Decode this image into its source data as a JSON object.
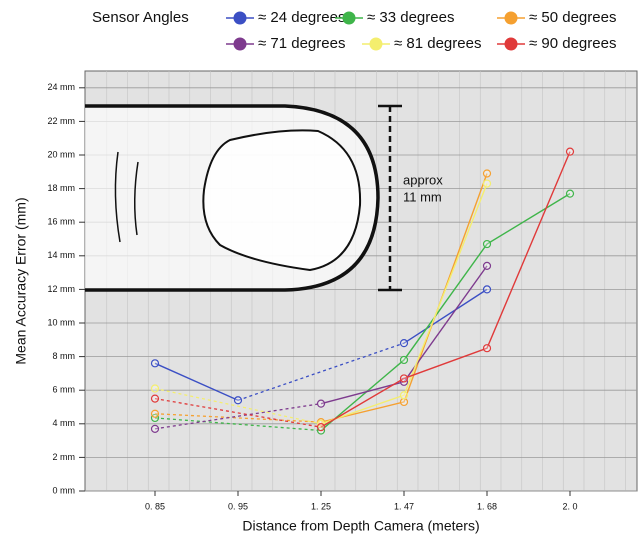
{
  "chart_data": {
    "type": "line",
    "legend_title": "Sensor Angles",
    "xlabel": "Distance from Depth Camera (meters)",
    "ylabel": "Mean Accuracy Error (mm)",
    "annotation": [
      "approx",
      "11 mm"
    ],
    "categories": [
      "0. 85",
      "0. 95",
      "1. 25",
      "1. 47",
      "1. 68",
      "2. 0"
    ],
    "series": [
      {
        "name": "≈ 24 degrees",
        "color": "#3b4fc4",
        "values": [
          7.6,
          5.4,
          null,
          8.8,
          12.0,
          null
        ]
      },
      {
        "name": "≈ 33 degrees",
        "color": "#3fb54a",
        "values": [
          4.35,
          null,
          3.6,
          7.8,
          14.7,
          17.7
        ]
      },
      {
        "name": "≈ 50 degrees",
        "color": "#f5a030",
        "values": [
          4.6,
          null,
          4.1,
          5.3,
          18.9,
          null
        ]
      },
      {
        "name": "≈ 71 degrees",
        "color": "#7e3b8e",
        "values": [
          3.7,
          null,
          5.2,
          6.5,
          13.4,
          null
        ]
      },
      {
        "name": "≈ 81 degrees",
        "color": "#f4ee6e",
        "values": [
          6.1,
          null,
          4.0,
          5.7,
          18.3,
          null
        ]
      },
      {
        "name": "≈ 90 degrees",
        "color": "#e03a3a",
        "values": [
          5.5,
          null,
          3.8,
          6.7,
          8.5,
          20.2
        ]
      }
    ],
    "ylim": [
      0,
      25
    ],
    "yticks": [
      {
        "value": 0,
        "label": "0 mm"
      },
      {
        "value": 2,
        "label": "2 mm"
      },
      {
        "value": 4,
        "label": "4 mm"
      },
      {
        "value": 6,
        "label": "6 mm"
      },
      {
        "value": 8,
        "label": "8 mm"
      },
      {
        "value": 10,
        "label": "10 mm"
      },
      {
        "value": 12,
        "label": "12 mm"
      },
      {
        "value": 14,
        "label": "14 mm"
      },
      {
        "value": 16,
        "label": "16 mm"
      },
      {
        "value": 18,
        "label": "18 mm"
      },
      {
        "value": 20,
        "label": "20 mm"
      },
      {
        "value": 22,
        "label": "22 mm"
      },
      {
        "value": 24,
        "label": "24 mm"
      }
    ],
    "grid": true
  }
}
